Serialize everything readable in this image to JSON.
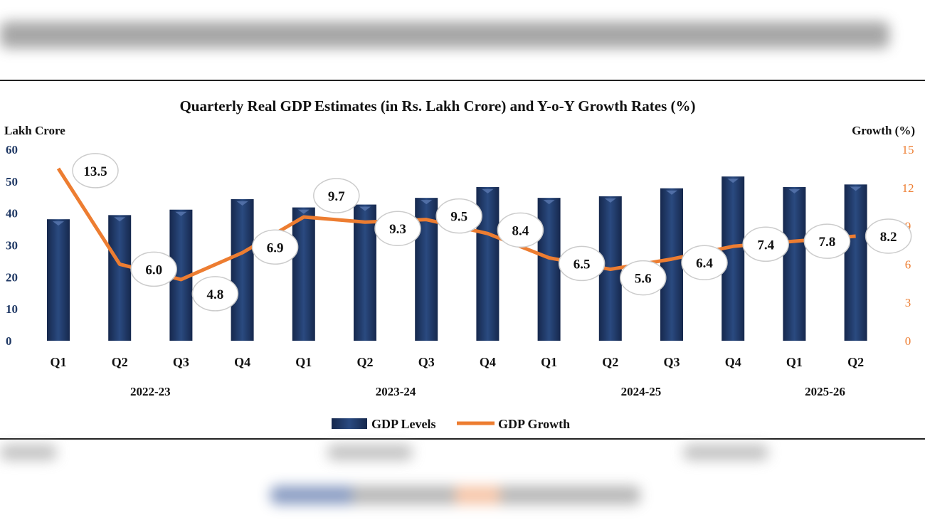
{
  "chart_data": {
    "type": "bar+line",
    "title": "Quarterly Real GDP Estimates (in Rs. Lakh Crore) and Y-o-Y Growth Rates (%)",
    "ylabel_left": "Lakh Crore",
    "ylabel_right": "Growth (%)",
    "ylim_left": [
      0,
      60
    ],
    "yticks_left": [
      0,
      10,
      20,
      30,
      40,
      50,
      60
    ],
    "ylim_right": [
      0,
      15
    ],
    "yticks_right": [
      0,
      3,
      6,
      9,
      12,
      15
    ],
    "categories": [
      "Q1",
      "Q2",
      "Q3",
      "Q4",
      "Q1",
      "Q2",
      "Q3",
      "Q4",
      "Q1",
      "Q2",
      "Q3",
      "Q4",
      "Q1",
      "Q2"
    ],
    "year_groups": [
      {
        "label": "2022-23",
        "span": [
          0,
          3
        ]
      },
      {
        "label": "2023-24",
        "span": [
          4,
          7
        ]
      },
      {
        "label": "2024-25",
        "span": [
          8,
          11
        ]
      },
      {
        "label": "2025-26",
        "span": [
          12,
          13
        ]
      }
    ],
    "grid": false,
    "legend_placement": "bottom",
    "series": [
      {
        "name": "GDP Levels",
        "type": "bar",
        "axis": "left",
        "color": "#1f3864",
        "values": [
          38.1,
          39.4,
          41.1,
          44.4,
          41.8,
          42.7,
          44.8,
          48.2,
          44.8,
          45.3,
          47.8,
          51.5,
          48.2,
          49.0
        ]
      },
      {
        "name": "GDP Growth",
        "type": "line",
        "axis": "right",
        "color": "#ed7d31",
        "values": [
          13.5,
          6.0,
          4.8,
          6.9,
          9.7,
          9.3,
          9.5,
          8.4,
          6.5,
          5.6,
          6.4,
          7.4,
          7.8,
          8.2
        ],
        "labels": [
          "13.5",
          "6.0",
          "4.8",
          "6.9",
          "9.7",
          "9.3",
          "9.5",
          "8.4",
          "6.5",
          "5.6",
          "6.4",
          "7.4",
          "7.8",
          "8.2"
        ]
      }
    ],
    "left_tick_color": "#1f3864",
    "right_tick_color": "#ed7d31"
  }
}
